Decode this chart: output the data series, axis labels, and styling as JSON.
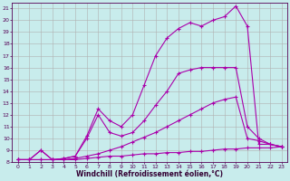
{
  "xlabel": "Windchill (Refroidissement éolien,°C)",
  "background_color": "#c8ecec",
  "grid_color": "#b0b0b0",
  "line_color": "#aa00aa",
  "xlim": [
    -0.5,
    23.5
  ],
  "ylim": [
    8,
    21.5
  ],
  "xticks": [
    0,
    1,
    2,
    3,
    4,
    5,
    6,
    7,
    8,
    9,
    10,
    11,
    12,
    13,
    14,
    15,
    16,
    17,
    18,
    19,
    20,
    21,
    22,
    23
  ],
  "yticks": [
    8,
    9,
    10,
    11,
    12,
    13,
    14,
    15,
    16,
    17,
    18,
    19,
    20,
    21
  ],
  "line1_x": [
    0,
    1,
    2,
    3,
    4,
    5,
    6,
    7,
    8,
    9,
    10,
    11,
    12,
    13,
    14,
    15,
    16,
    17,
    18,
    19,
    20,
    21,
    22,
    23
  ],
  "line1_y": [
    8.2,
    8.2,
    8.2,
    8.2,
    8.2,
    8.2,
    8.3,
    8.4,
    8.5,
    8.5,
    8.6,
    8.7,
    8.7,
    8.8,
    8.8,
    8.9,
    8.9,
    9.0,
    9.1,
    9.1,
    9.2,
    9.2,
    9.2,
    9.3
  ],
  "line2_x": [
    0,
    1,
    2,
    3,
    4,
    5,
    6,
    7,
    8,
    9,
    10,
    11,
    12,
    13,
    14,
    15,
    16,
    17,
    18,
    19,
    20,
    21,
    22,
    23
  ],
  "line2_y": [
    8.2,
    8.2,
    8.2,
    8.2,
    8.2,
    8.3,
    8.5,
    8.7,
    9.0,
    9.3,
    9.7,
    10.1,
    10.5,
    11.0,
    11.5,
    12.0,
    12.5,
    13.0,
    13.3,
    13.5,
    10.0,
    9.8,
    9.5,
    9.3
  ],
  "line3_x": [
    0,
    1,
    2,
    3,
    4,
    5,
    6,
    7,
    8,
    9,
    10,
    11,
    12,
    13,
    14,
    15,
    16,
    17,
    18,
    19,
    20,
    21,
    22,
    23
  ],
  "line3_y": [
    8.2,
    8.2,
    9.0,
    8.2,
    8.3,
    8.5,
    10.0,
    12.0,
    10.5,
    10.2,
    10.5,
    11.5,
    12.8,
    14.0,
    15.5,
    15.8,
    16.0,
    16.0,
    16.0,
    16.0,
    11.0,
    10.0,
    9.5,
    9.3
  ],
  "line4_x": [
    0,
    1,
    2,
    3,
    4,
    5,
    6,
    7,
    8,
    9,
    10,
    11,
    12,
    13,
    14,
    15,
    16,
    17,
    18,
    19,
    20,
    21,
    22,
    23
  ],
  "line4_y": [
    8.2,
    8.2,
    9.0,
    8.2,
    8.3,
    8.5,
    10.2,
    12.5,
    11.5,
    11.0,
    12.0,
    14.5,
    17.0,
    18.5,
    19.3,
    19.8,
    19.5,
    20.0,
    20.3,
    21.2,
    19.5,
    9.5,
    9.5,
    9.3
  ]
}
